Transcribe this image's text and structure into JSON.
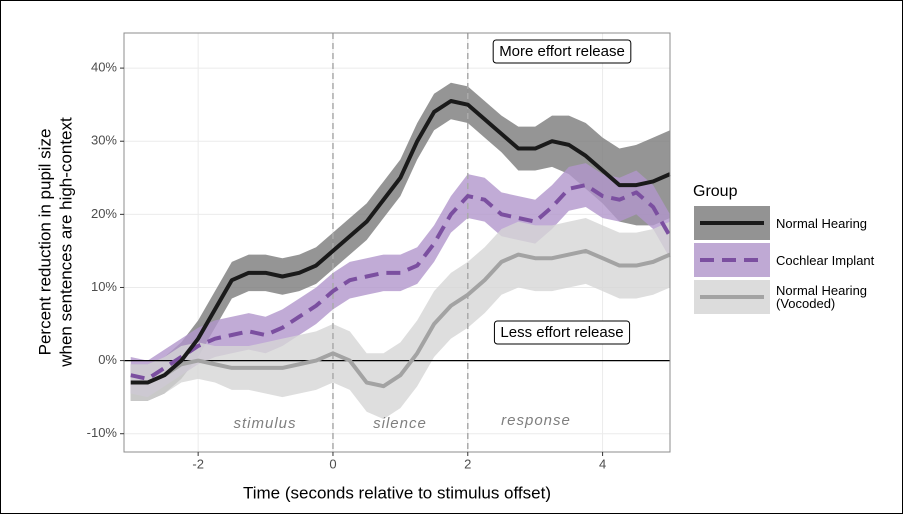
{
  "chart_data": {
    "type": "line",
    "xlabel": "Time (seconds relative to stimulus offset)",
    "ylabel": [
      "Percent reduction in pupil size",
      "when sentences are high-context"
    ],
    "xlim": [
      -3.1,
      5.0
    ],
    "ylim": [
      -12.5,
      44.8
    ],
    "xticks": [
      -2,
      0,
      2,
      4
    ],
    "yticks": [
      {
        "value": -10,
        "label": "-10%"
      },
      {
        "value": 0,
        "label": "0%"
      },
      {
        "value": 10,
        "label": "10%"
      },
      {
        "value": 20,
        "label": "20%"
      },
      {
        "value": 30,
        "label": "30%"
      },
      {
        "value": 40,
        "label": "40%"
      }
    ],
    "grid": true,
    "vlines": [
      0,
      2
    ],
    "hline": 0,
    "legend_title": "Group",
    "legend": "right",
    "annotations": [
      "More effort release",
      "Less effort release",
      "stimulus",
      "silence",
      "response"
    ],
    "x": [
      -3,
      -2.75,
      -2.5,
      -2.25,
      -2,
      -1.75,
      -1.5,
      -1.25,
      -1,
      -0.75,
      -0.5,
      -0.25,
      0,
      0.25,
      0.5,
      0.75,
      1,
      1.25,
      1.5,
      1.75,
      2,
      2.25,
      2.5,
      2.75,
      3,
      3.25,
      3.5,
      3.75,
      4,
      4.25,
      4.5,
      4.75,
      5
    ],
    "series": [
      {
        "name": "Normal Hearing",
        "color": "#1a1a1a",
        "band_color": "#7a7a7a",
        "dash": false,
        "values": [
          -3,
          -3,
          -2,
          0,
          3,
          7,
          11,
          12,
          12,
          11.5,
          12,
          13,
          15,
          17,
          19,
          22,
          25,
          30,
          34,
          35.5,
          35,
          33,
          31,
          29,
          29,
          30,
          29.5,
          28,
          26,
          24,
          24,
          24.5,
          25.5
        ],
        "error": [
          2.5,
          2.5,
          2.5,
          2.5,
          2.5,
          2.5,
          2.5,
          2.5,
          2.5,
          2.5,
          2.5,
          2.5,
          2.5,
          2.5,
          2.5,
          2.5,
          2.5,
          2.5,
          2.5,
          2.5,
          2.5,
          2.5,
          2.5,
          3,
          3,
          3.5,
          4,
          4.5,
          4.5,
          5,
          5.5,
          6,
          6
        ]
      },
      {
        "name": "Cochlear Implant",
        "color": "#7b4fa0",
        "band_color": "#b196cc",
        "dash": true,
        "values": [
          -2,
          -2.5,
          -1,
          0.5,
          2,
          3,
          3.5,
          4,
          3.5,
          4.5,
          6,
          7.5,
          9.5,
          11,
          11.5,
          12,
          12,
          13,
          16,
          20,
          22.5,
          22,
          20,
          19.5,
          19,
          21,
          23.5,
          24,
          22.5,
          22,
          23,
          21,
          17
        ],
        "error": [
          2.5,
          2.5,
          2.5,
          2.5,
          2.5,
          2.5,
          2.5,
          2.5,
          2.5,
          2.5,
          2.5,
          2.5,
          2.5,
          2.5,
          2.5,
          2.5,
          2.5,
          2.5,
          2.5,
          2.5,
          3,
          3,
          3,
          3,
          3,
          3,
          3,
          3,
          3,
          3,
          3,
          3,
          3
        ]
      },
      {
        "name": "Normal Hearing (Vocoded)",
        "color": "#a3a3a3",
        "band_color": "#d6d6d6",
        "dash": false,
        "values": [
          -3,
          -3,
          -2,
          -0.5,
          0,
          -0.5,
          -1,
          -1,
          -1,
          -1,
          -0.5,
          0,
          1,
          0,
          -3,
          -3.5,
          -2,
          1,
          5,
          7.5,
          9,
          11,
          13.5,
          14.5,
          14,
          14,
          14.5,
          15,
          14,
          13,
          13,
          13.5,
          14.5
        ],
        "error": [
          2.5,
          2.5,
          2.5,
          2.5,
          2.5,
          2.5,
          3,
          3,
          3.5,
          4,
          4,
          4,
          4,
          4,
          4,
          4.5,
          4.5,
          4.5,
          4.5,
          4.5,
          4.5,
          4.5,
          4.5,
          4.5,
          4.5,
          4.5,
          4.5,
          4.5,
          4.5,
          4.5,
          4.5,
          4.5,
          4.5
        ]
      }
    ]
  }
}
